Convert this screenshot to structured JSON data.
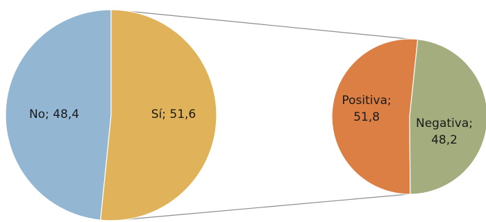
{
  "chart_data": [
    {
      "type": "pie",
      "categories": [
        "No",
        "Sí"
      ],
      "values": [
        48.4,
        51.6
      ],
      "colors": [
        "#93b6d2",
        "#e0b35a"
      ],
      "data_labels": [
        "No; 48,4",
        "Sí; 51,6"
      ]
    },
    {
      "type": "pie",
      "categories": [
        "Positiva",
        "Negativa"
      ],
      "values": [
        51.8,
        48.2
      ],
      "colors": [
        "#dc7f45",
        "#a3ad7e"
      ],
      "data_labels": [
        [
          "Positiva;",
          "51,8"
        ],
        [
          "Negativa;",
          "48,2"
        ]
      ]
    }
  ],
  "connector_color": "#8c8c8c"
}
